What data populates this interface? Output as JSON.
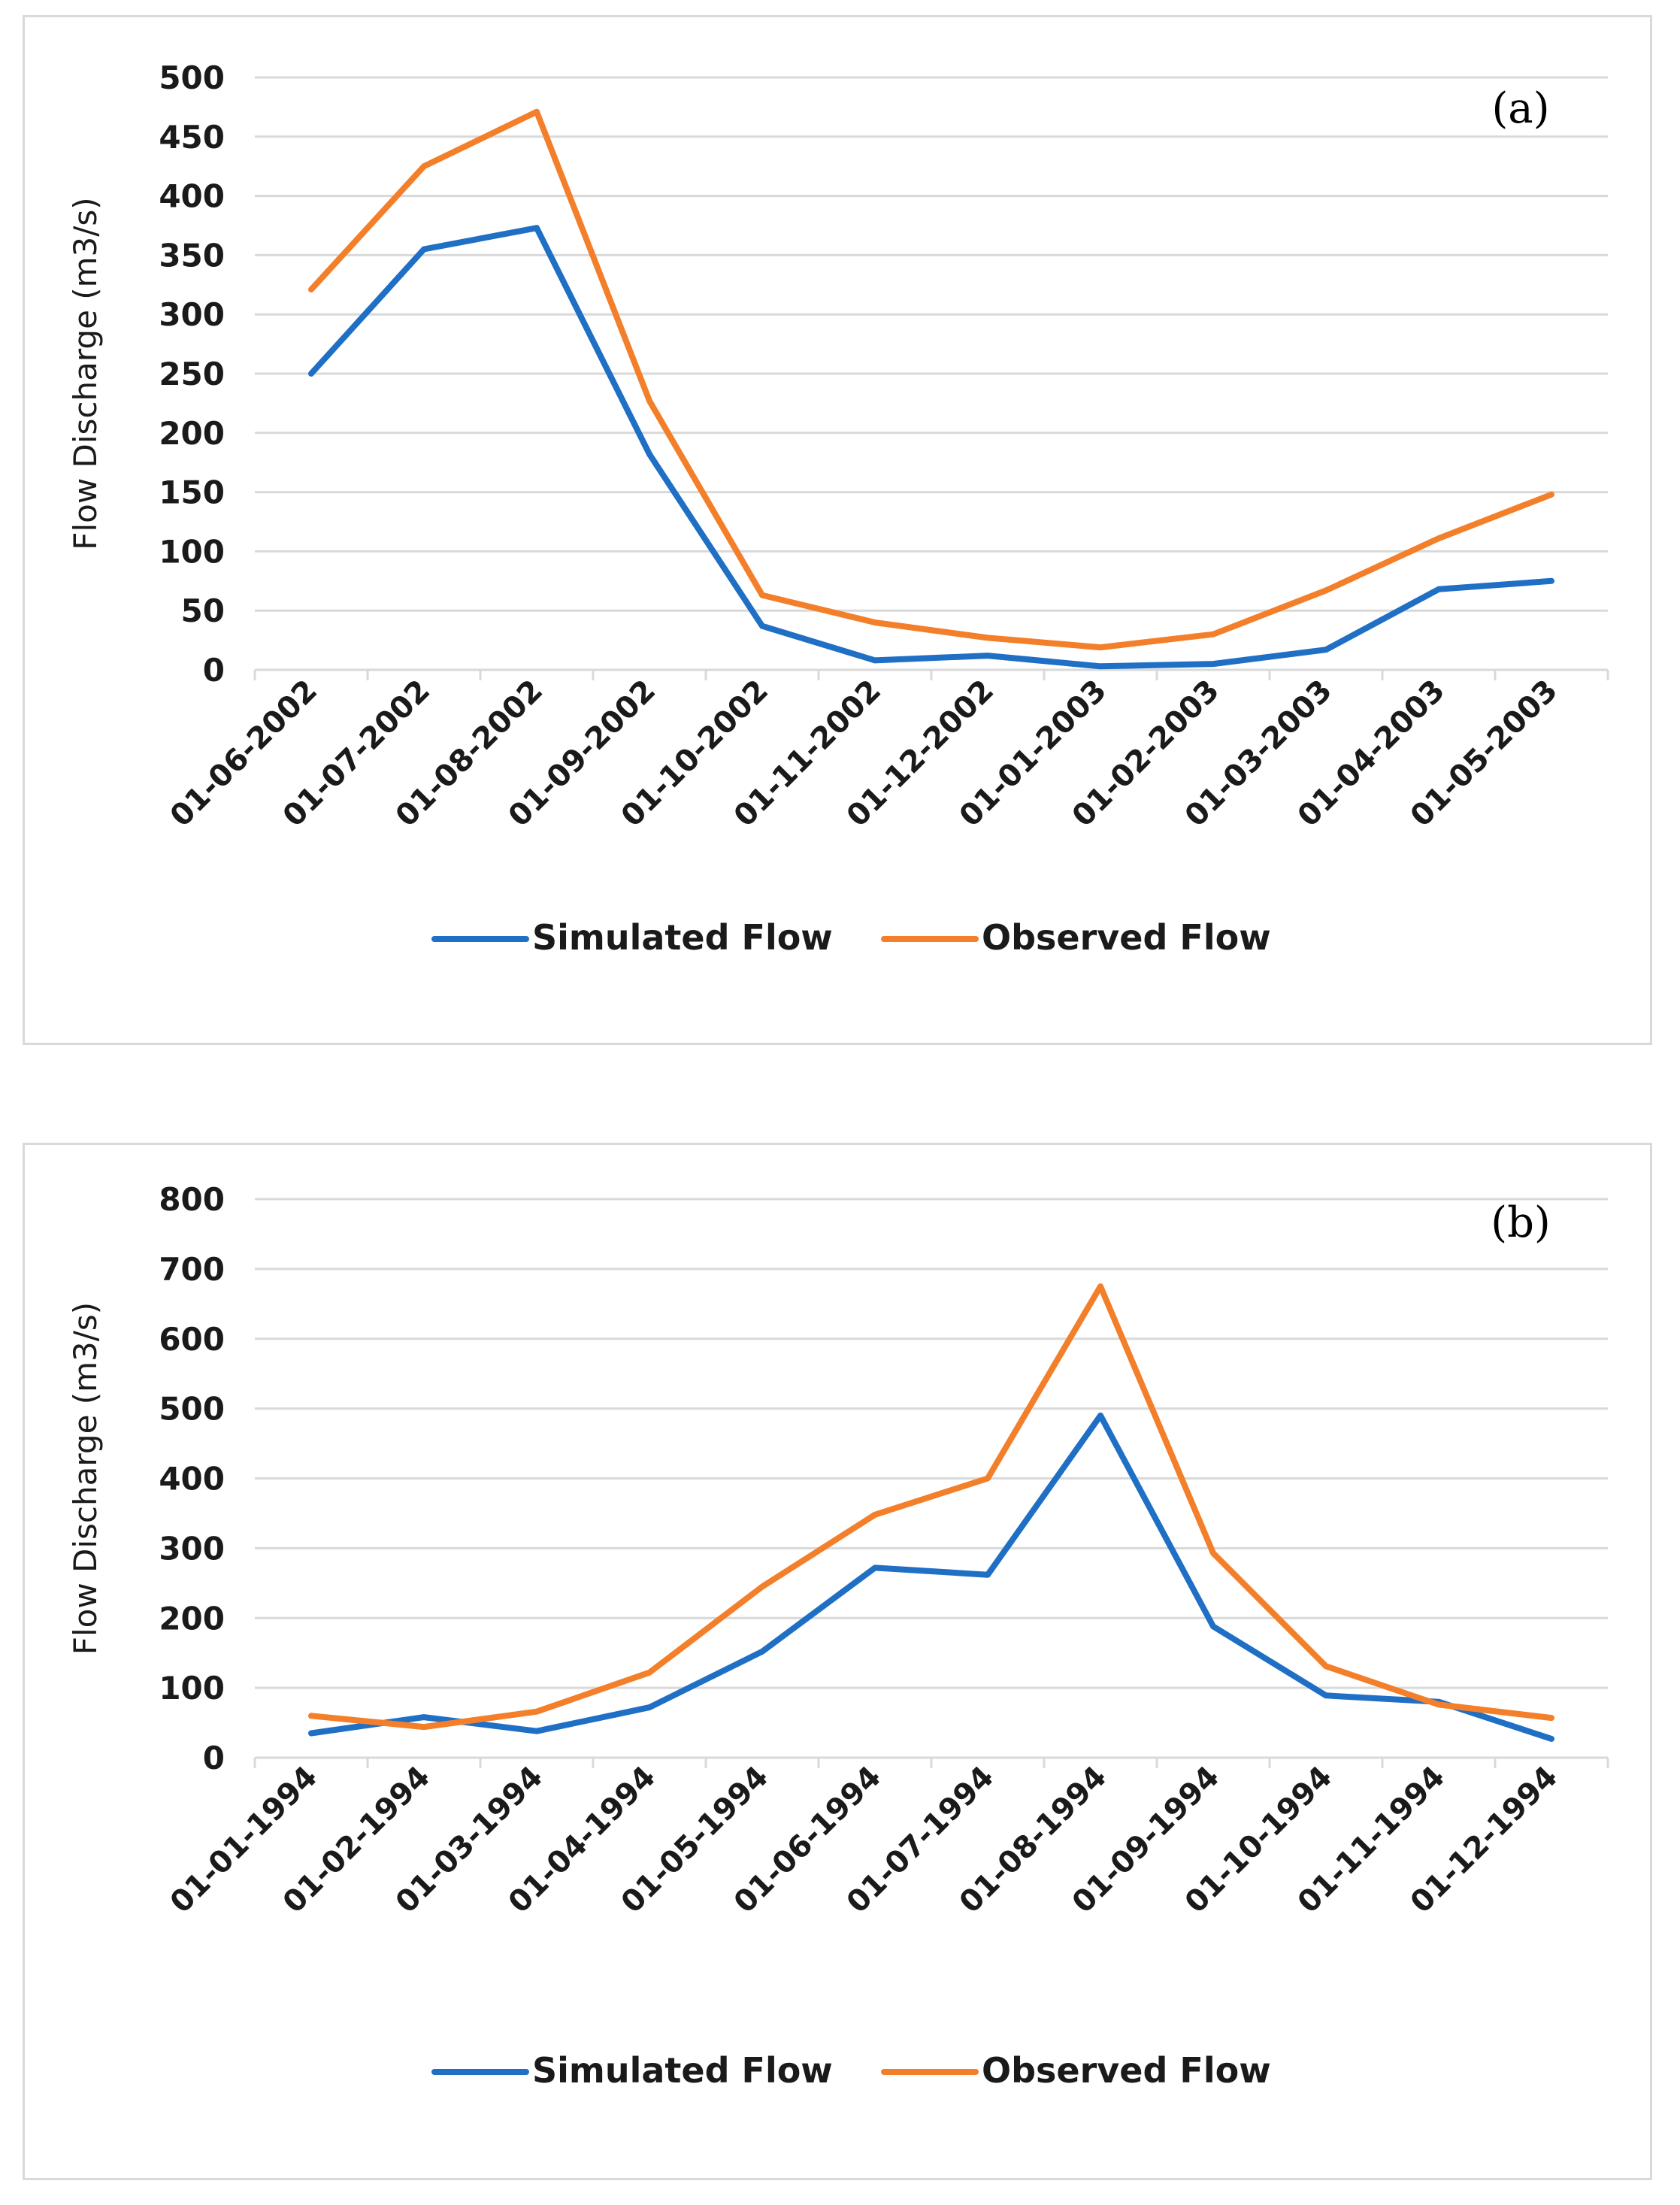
{
  "colors": {
    "simulated": "#1f6fc5",
    "observed": "#f37f2a"
  },
  "chart_data": [
    {
      "type": "line",
      "panel_label": "(a)",
      "ylabel": "Flow Discharge (m3/s)",
      "xlabel": "",
      "ylim": [
        0,
        500
      ],
      "yticks": [
        0,
        50,
        100,
        150,
        200,
        250,
        300,
        350,
        400,
        450,
        500
      ],
      "categories": [
        "01-06-2002",
        "01-07-2002",
        "01-08-2002",
        "01-09-2002",
        "01-10-2002",
        "01-11-2002",
        "01-12-2002",
        "01-01-2003",
        "01-02-2003",
        "01-03-2003",
        "01-04-2003",
        "01-05-2003"
      ],
      "series": [
        {
          "name": "Simulated Flow",
          "color_key": "simulated",
          "values": [
            250,
            355,
            373,
            182,
            37,
            8,
            12,
            3,
            5,
            17,
            68,
            75
          ]
        },
        {
          "name": "Observed Flow",
          "color_key": "observed",
          "values": [
            321,
            425,
            471,
            227,
            63,
            40,
            27,
            19,
            30,
            67,
            111,
            148
          ]
        }
      ],
      "legend_position": "bottom"
    },
    {
      "type": "line",
      "panel_label": "(b)",
      "ylabel": "Flow Discharge (m3/s)",
      "xlabel": "",
      "ylim": [
        0,
        800
      ],
      "yticks": [
        0,
        100,
        200,
        300,
        400,
        500,
        600,
        700,
        800
      ],
      "categories": [
        "01-01-1994",
        "01-02-1994",
        "01-03-1994",
        "01-04-1994",
        "01-05-1994",
        "01-06-1994",
        "01-07-1994",
        "01-08-1994",
        "01-09-1994",
        "01-10-1994",
        "01-11-1994",
        "01-12-1994"
      ],
      "series": [
        {
          "name": "Simulated Flow",
          "color_key": "simulated",
          "values": [
            35,
            58,
            38,
            72,
            152,
            272,
            262,
            490,
            188,
            89,
            80,
            27
          ]
        },
        {
          "name": "Observed Flow",
          "color_key": "observed",
          "values": [
            60,
            44,
            66,
            122,
            245,
            348,
            400,
            675,
            293,
            131,
            76,
            57
          ]
        }
      ],
      "legend_position": "bottom"
    }
  ]
}
